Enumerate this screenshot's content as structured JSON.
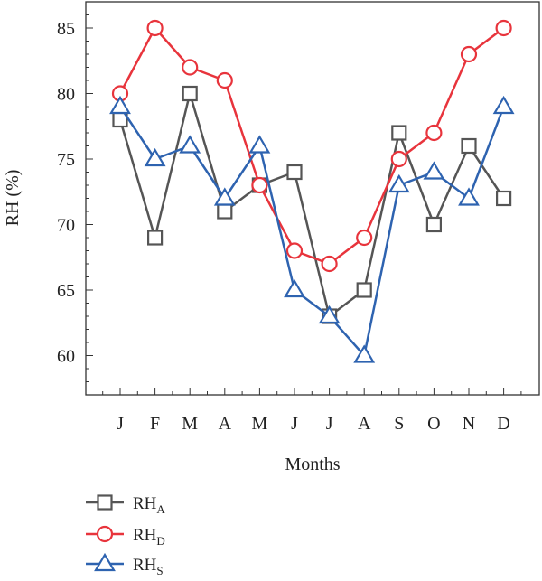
{
  "chart_data": {
    "type": "line",
    "title": "",
    "xlabel": "Months",
    "ylabel": "RH (%)",
    "categories": [
      "J",
      "F",
      "M",
      "A",
      "M",
      "J",
      "J",
      "A",
      "S",
      "O",
      "N",
      "D"
    ],
    "ylim": [
      57,
      87
    ],
    "yticks": [
      60,
      65,
      70,
      75,
      80,
      85
    ],
    "grid": false,
    "legend_position": "bottom-left",
    "series": [
      {
        "base": "RH",
        "sub": "A",
        "color": "#555555",
        "marker": "square",
        "values": [
          78,
          69,
          80,
          71,
          73,
          74,
          63,
          65,
          77,
          70,
          76,
          72
        ]
      },
      {
        "base": "RH",
        "sub": "D",
        "color": "#e8343c",
        "marker": "circle",
        "values": [
          80,
          85,
          82,
          81,
          73,
          68,
          67,
          69,
          75,
          77,
          83,
          85
        ]
      },
      {
        "base": "RH",
        "sub": "S",
        "color": "#2e63b0",
        "marker": "triangle",
        "values": [
          79,
          75,
          76,
          72,
          76,
          65,
          63,
          60,
          73,
          74,
          72,
          79
        ]
      }
    ]
  }
}
